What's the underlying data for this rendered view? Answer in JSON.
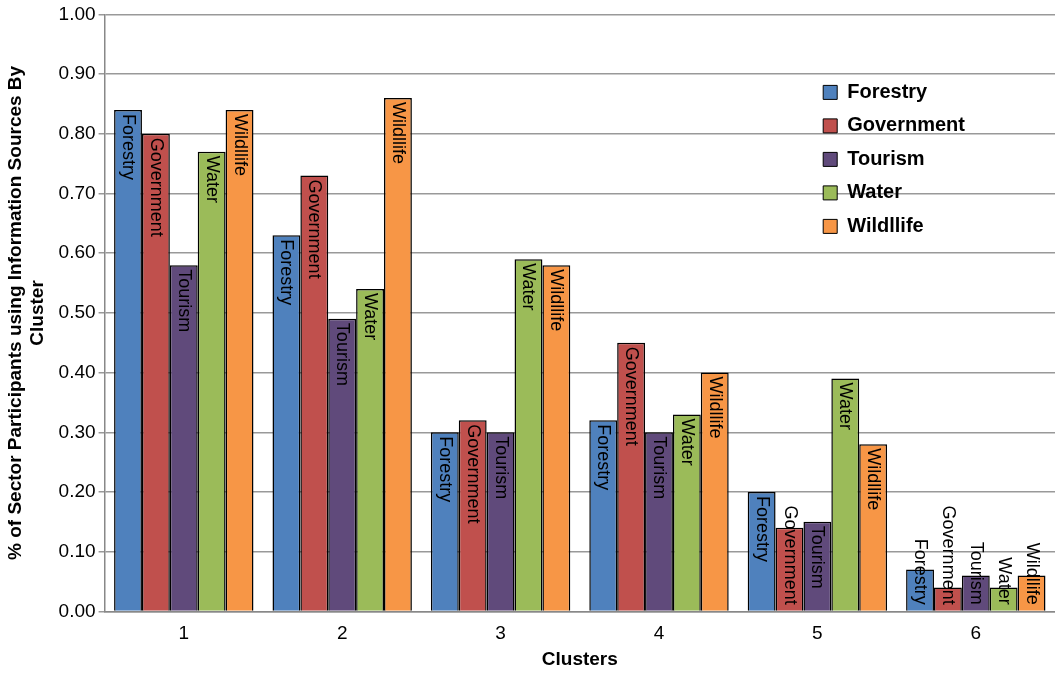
{
  "chart_data": {
    "type": "bar",
    "xlabel": "Clusters",
    "ylabel": "% of Sector Participants using Information Sources By Cluster",
    "categories": [
      "1",
      "2",
      "3",
      "4",
      "5",
      "6"
    ],
    "series": [
      {
        "name": "Forestry",
        "color": "#4f81bd",
        "values": [
          0.84,
          0.63,
          0.3,
          0.32,
          0.2,
          0.07
        ],
        "value_labels": [
          "Forestry",
          "Forestry",
          "Forestry",
          "Forestry",
          "Forestry",
          "Forestry"
        ]
      },
      {
        "name": "Government",
        "color": "#c0504d",
        "values": [
          0.8,
          0.73,
          0.32,
          0.45,
          0.14,
          0.04
        ],
        "value_labels": [
          "Government",
          "Government",
          "Government",
          "Government",
          "Government",
          "Government"
        ]
      },
      {
        "name": "Tourism",
        "color": "#604a7b",
        "values": [
          0.58,
          0.49,
          0.3,
          0.3,
          0.15,
          0.06
        ],
        "value_labels": [
          "Tourism",
          "Tourism",
          "Tourism",
          "Tourism",
          "Tourism",
          "Tourism"
        ]
      },
      {
        "name": "Water",
        "color": "#9bbb59",
        "values": [
          0.77,
          0.54,
          0.59,
          0.33,
          0.39,
          0.04
        ],
        "value_labels": [
          "Water",
          "Water",
          "Water",
          "Water",
          "Water",
          "Water"
        ]
      },
      {
        "name": "Wildllife",
        "color": "#f79646",
        "values": [
          0.84,
          0.86,
          0.58,
          0.4,
          0.28,
          0.06
        ],
        "value_labels": [
          "Wildllife",
          "Wildllife",
          "Wildllife",
          "Wildllife",
          "Wildllife",
          "Wildllife"
        ]
      }
    ],
    "ylim": [
      0,
      1
    ],
    "yticks": [
      {
        "value": 0,
        "label": "0.00"
      },
      {
        "value": 0.1,
        "label": "0.10"
      },
      {
        "value": 0.2,
        "label": "0.20"
      },
      {
        "value": 0.3,
        "label": "0.30"
      },
      {
        "value": 0.4,
        "label": "0.40"
      },
      {
        "value": 0.5,
        "label": "0.50"
      },
      {
        "value": 0.6,
        "label": "0.60"
      },
      {
        "value": 0.7,
        "label": "0.70"
      },
      {
        "value": 0.8,
        "label": "0.80"
      },
      {
        "value": 0.9,
        "label": "0.90"
      },
      {
        "value": 1,
        "label": "1.00"
      }
    ],
    "grid": "y",
    "legend": "top right"
  }
}
